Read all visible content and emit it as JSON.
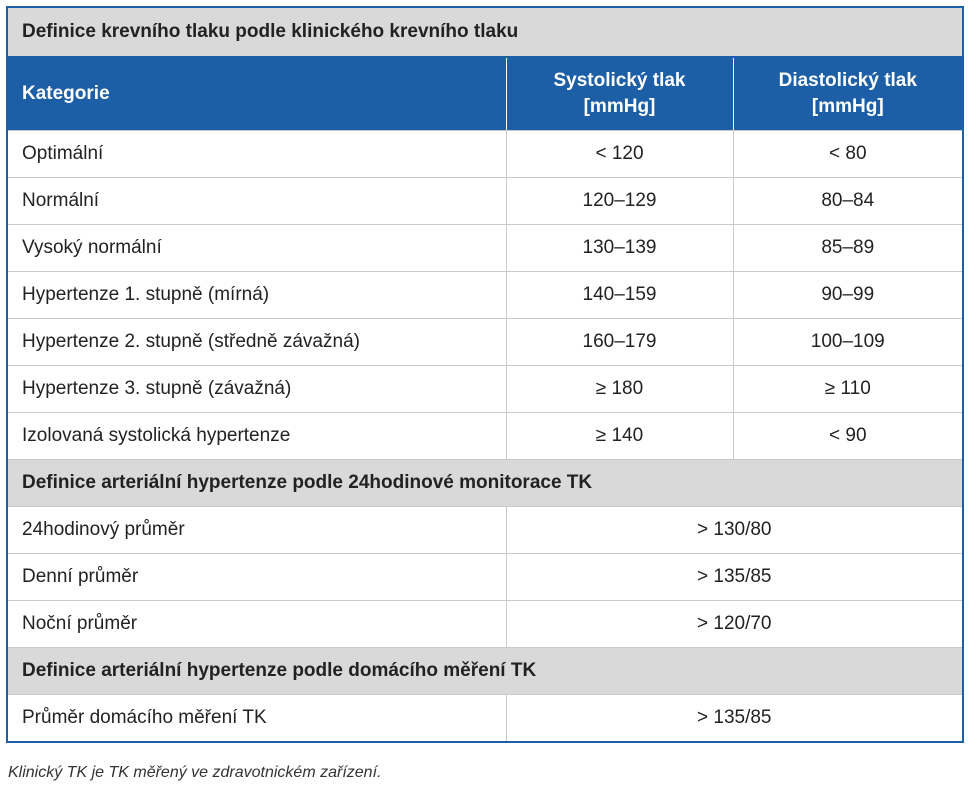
{
  "title": "Definice krevního tlaku podle klinického krevního tlaku",
  "header": {
    "category": "Kategorie",
    "systolic": [
      "Systolický tlak",
      "[mmHg]"
    ],
    "diastolic": [
      "Diastolický tlak",
      "[mmHg]"
    ]
  },
  "rows": [
    [
      "Optimální",
      "< 120",
      "< 80"
    ],
    [
      "Normální",
      "120–129",
      "80–84"
    ],
    [
      "Vysoký normální",
      "130–139",
      "85–89"
    ],
    [
      "Hypertenze 1. stupně (mírná)",
      "140–159",
      "90–99"
    ],
    [
      "Hypertenze 2. stupně (středně závažná)",
      "160–179",
      "100–109"
    ],
    [
      "Hypertenze 3. stupně (závažná)",
      "≥ 180",
      "≥ 110"
    ],
    [
      "Izolovaná systolická hypertenze",
      "≥ 140",
      "< 90"
    ]
  ],
  "sections": [
    {
      "title": "Definice arteriální hypertenze podle 24hodinové monitorace TK",
      "rows": [
        [
          "24hodinový průměr",
          "> 130/80"
        ],
        [
          "Denní průměr",
          "> 135/85"
        ],
        [
          "Noční průměr",
          "> 120/70"
        ]
      ]
    },
    {
      "title": "Definice arteriální hypertenze podle domácího měření TK",
      "rows": [
        [
          "Průměr domácího měření TK",
          "> 135/85"
        ]
      ]
    }
  ],
  "footnote": "Klinický TK je TK měřený ve zdravotnickém zařízení."
}
